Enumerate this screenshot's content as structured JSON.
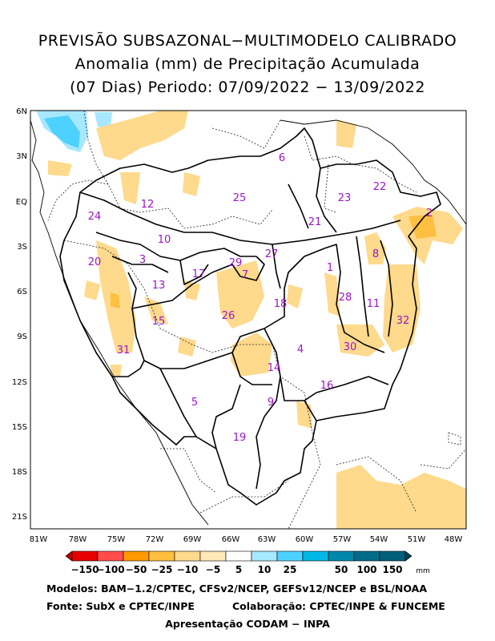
{
  "title": {
    "line1": "PREVISÃO SUBSAZONAL−MULTIMODELO CALIBRADO",
    "line2": "Anomalia (mm) de Precipitação Acumulada",
    "line3": "(07 Dias) Periodo: 07/09/2022 − 13/09/2022"
  },
  "axes": {
    "lat_labels": [
      "6N",
      "3N",
      "EQ",
      "3S",
      "6S",
      "9S",
      "12S",
      "15S",
      "18S",
      "21S"
    ],
    "lon_labels": [
      "81W",
      "78W",
      "75W",
      "72W",
      "69W",
      "66W",
      "63W",
      "60W",
      "57W",
      "54W",
      "51W",
      "48W"
    ]
  },
  "regions": [
    {
      "id": "1"
    },
    {
      "id": "2"
    },
    {
      "id": "3"
    },
    {
      "id": "4"
    },
    {
      "id": "5"
    },
    {
      "id": "6"
    },
    {
      "id": "7"
    },
    {
      "id": "8"
    },
    {
      "id": "9"
    },
    {
      "id": "10"
    },
    {
      "id": "11"
    },
    {
      "id": "12"
    },
    {
      "id": "13"
    },
    {
      "id": "14"
    },
    {
      "id": "15"
    },
    {
      "id": "16"
    },
    {
      "id": "17"
    },
    {
      "id": "18"
    },
    {
      "id": "19"
    },
    {
      "id": "20"
    },
    {
      "id": "21"
    },
    {
      "id": "22"
    },
    {
      "id": "23"
    },
    {
      "id": "24"
    },
    {
      "id": "25"
    },
    {
      "id": "26"
    },
    {
      "id": "27"
    },
    {
      "id": "28"
    },
    {
      "id": "29"
    },
    {
      "id": "30"
    },
    {
      "id": "31"
    },
    {
      "id": "32"
    }
  ],
  "legend": {
    "labels": [
      "−150",
      "−100",
      "−50",
      "−25",
      "−10",
      "−5",
      "5",
      "10",
      "25",
      "50",
      "100",
      "150"
    ],
    "unit": "mm",
    "colors": [
      "#b30000",
      "#e60000",
      "#ff4d4d",
      "#ff9900",
      "#ffbf40",
      "#ffd98c",
      "#ffffff",
      "#a6e8ff",
      "#4dd2ff",
      "#00b8e6",
      "#0088aa",
      "#005f7a",
      "#003f55"
    ]
  },
  "credits": {
    "line1": "Modelos: BAM−1.2/CPTEC, CFSv2/NCEP, GEFSv12/NCEP e BSL/NOAA",
    "line2a": "Fonte: SubX e CPTEC/INPE",
    "line2b": "Colaboração: CPTEC/INPE & FUNCEME",
    "line3": "Apresentação CODAM − INPA"
  }
}
